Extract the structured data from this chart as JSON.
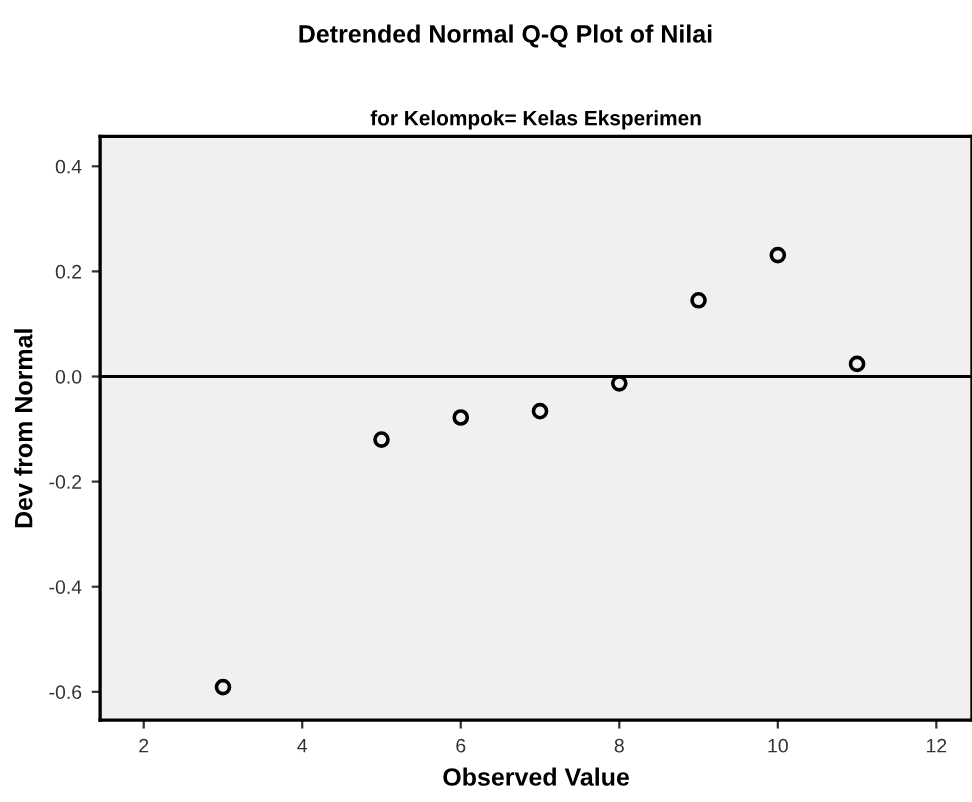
{
  "chart_data": {
    "type": "scatter",
    "title": "Detrended Normal Q-Q Plot of Nilai",
    "subtitle": "for Kelompok= Kelas Eksperimen",
    "xlabel": "Observed Value",
    "ylabel": "Dev from Normal",
    "x": [
      3,
      5,
      6,
      7,
      8,
      9,
      10,
      11
    ],
    "values": [
      -0.591,
      -0.12,
      -0.078,
      -0.066,
      -0.013,
      0.145,
      0.231,
      0.024
    ],
    "color": "#000000",
    "marker": "circle",
    "xlim": [
      1.45,
      12.45
    ],
    "xticks": [
      2,
      4,
      6,
      8,
      10,
      12
    ],
    "ylim": [
      -0.654,
      0.457
    ],
    "yticks": [
      {
        "value": -0.6,
        "label": "-0.6"
      },
      {
        "value": -0.4,
        "label": "-0.4"
      },
      {
        "value": -0.2,
        "label": "-0.2"
      },
      {
        "value": 0.0,
        "label": "0.0"
      },
      {
        "value": 0.2,
        "label": "0.2"
      },
      {
        "value": 0.4,
        "label": "0.4"
      }
    ],
    "ref_lines": [
      {
        "axis": "y",
        "value": 0,
        "color": "#000000"
      }
    ],
    "grid": false,
    "legend": false
  }
}
